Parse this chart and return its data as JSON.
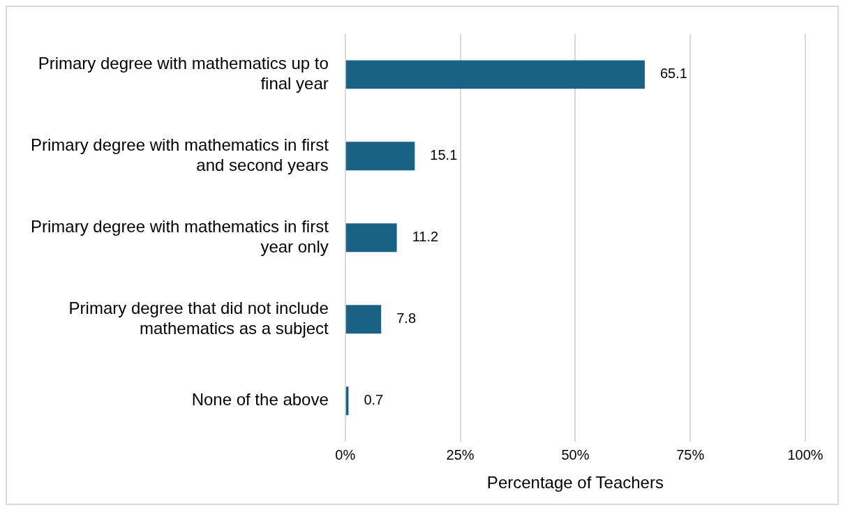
{
  "chart_data": {
    "type": "bar",
    "orientation": "horizontal",
    "categories": [
      "Primary degree with mathematics up to final year",
      "Primary degree with mathematics in first and second years",
      "Primary degree with mathematics in first year only",
      "Primary degree that did not include mathematics as a subject",
      "None of the above"
    ],
    "values": [
      65.1,
      15.1,
      11.2,
      7.8,
      0.7
    ],
    "color": "#1a6285",
    "xlabel": "Percentage of Teachers",
    "xlim": [
      0,
      100
    ],
    "xticks": [
      {
        "value": 0,
        "label": "0%"
      },
      {
        "value": 25,
        "label": "25%"
      },
      {
        "value": 50,
        "label": "50%"
      },
      {
        "value": 75,
        "label": "75%"
      },
      {
        "value": 100,
        "label": "100%"
      }
    ],
    "grid": "x",
    "data_labels": true,
    "legend": false
  }
}
